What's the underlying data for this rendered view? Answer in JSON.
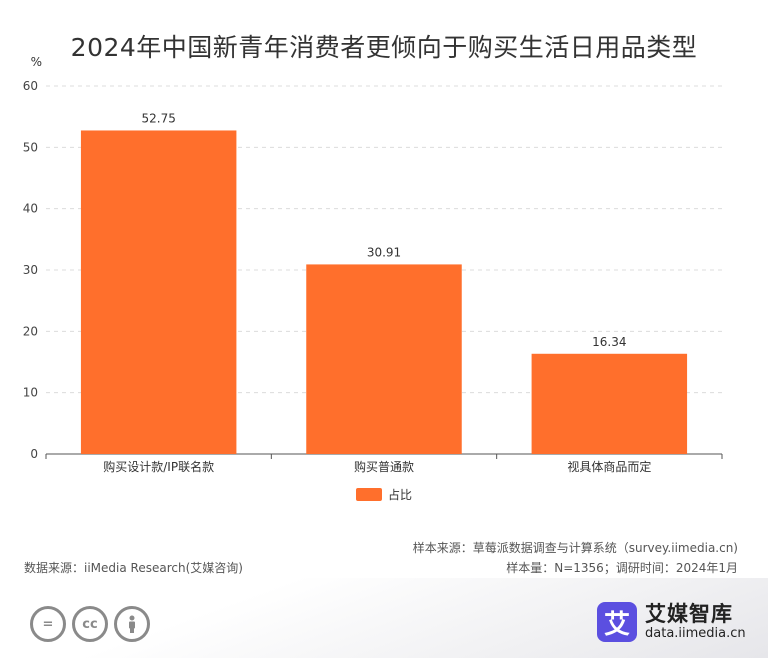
{
  "chart_data": {
    "type": "bar",
    "title": "2024年中国新青年消费者更倾向于购买生活日用品类型",
    "ylabel": "%",
    "xlabel": "",
    "categories": [
      "购买设计款/IP联名款",
      "购买普通款",
      "视具体商品而定"
    ],
    "series": [
      {
        "name": "占比",
        "values": [
          52.75,
          30.91,
          16.34
        ]
      }
    ],
    "ylim": [
      0,
      60
    ],
    "yticks": [
      0,
      10,
      20,
      30,
      40,
      50,
      60
    ],
    "grid": true,
    "legend": "bottom-center",
    "bar_color": "#ff6f2c"
  },
  "footer": {
    "data_source": "数据来源：iiMedia Research(艾媒咨询)",
    "sample_source": "样本来源：草莓派数据调查与计算系统（survey.iimedia.cn)",
    "sample_size": "样本量：N=1356；调研时间：2024年1月"
  },
  "brand": {
    "logo_char": "艾",
    "name": "艾媒智库",
    "url": "data.iimedia.cn"
  },
  "license_icons": [
    "=",
    "cc",
    "person"
  ]
}
